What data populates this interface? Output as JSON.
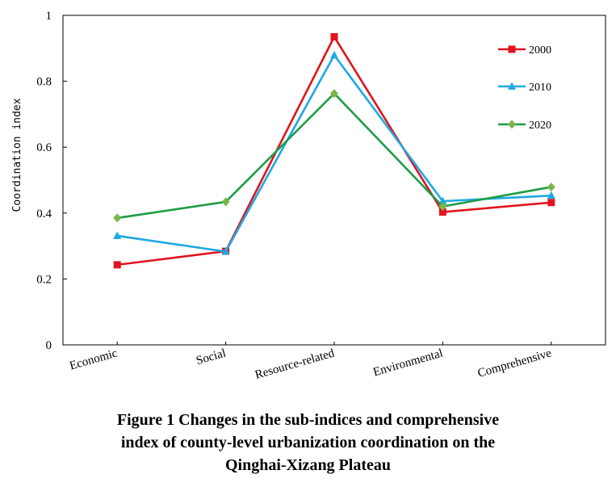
{
  "chart_data": {
    "type": "line",
    "categories": [
      "Economic",
      "Social",
      "Resource-related",
      "Environmental",
      "Comprehensive"
    ],
    "series": [
      {
        "name": "2000",
        "color": "#e0141e",
        "marker": "square",
        "values": [
          0.243,
          0.284,
          0.935,
          0.403,
          0.432
        ]
      },
      {
        "name": "2010",
        "color": "#1fa9e1",
        "marker": "triangle",
        "values": [
          0.331,
          0.283,
          0.879,
          0.436,
          0.453
        ]
      },
      {
        "name": "2020",
        "color": "#1e9c48",
        "marker": "diamond",
        "markerColor": "#7ab648",
        "values": [
          0.385,
          0.434,
          0.763,
          0.42,
          0.479
        ]
      }
    ],
    "ylabel": "Coordination index",
    "ylim": [
      0,
      1
    ],
    "yticks": [
      0,
      0.2,
      0.4,
      0.6,
      0.8,
      1
    ],
    "ytick_labels": [
      "0",
      "0.2",
      "0.4",
      "0.6",
      "0.8",
      "1"
    ],
    "grid": false,
    "legend_position": "top-right"
  },
  "caption": {
    "line1": "Figure 1  Changes in the sub-indices and comprehensive",
    "line2": "index of county-level urbanization coordination on the",
    "line3": "Qinghai-Xizang Plateau"
  }
}
